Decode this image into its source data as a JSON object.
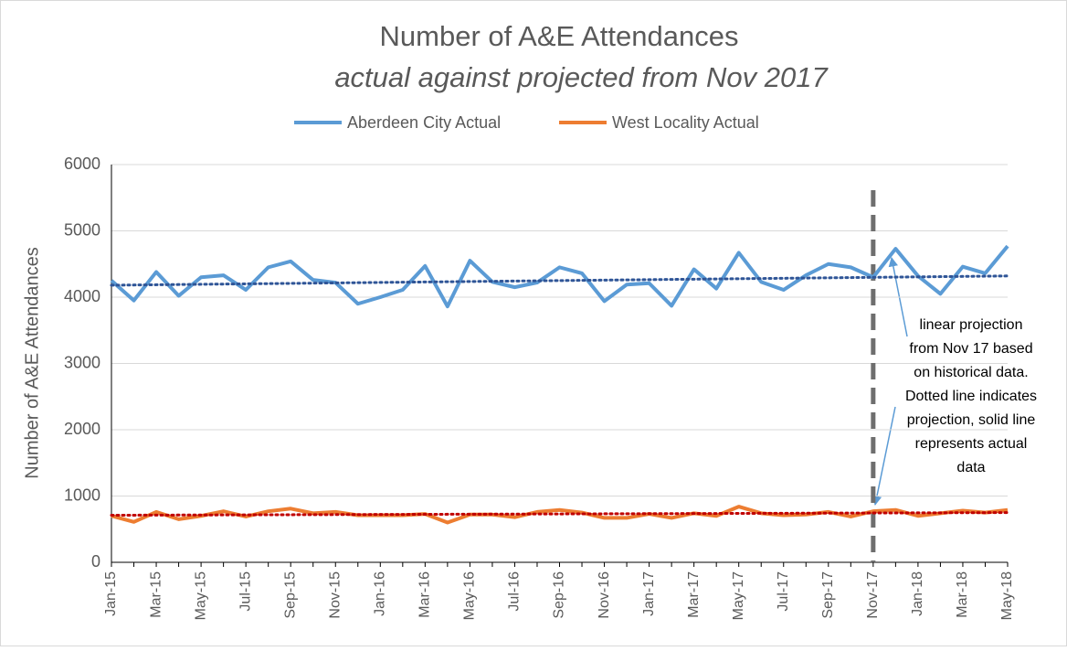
{
  "chart_data": {
    "type": "line",
    "title": "Number of A&E Attendances",
    "subtitle": "actual against projected from Nov 2017",
    "y_label": "Number of A&E Attendances",
    "categories": [
      "Jan-15",
      null,
      "Mar-15",
      null,
      "May-15",
      null,
      "Jul-15",
      null,
      "Sep-15",
      null,
      "Nov-15",
      null,
      "Jan-16",
      null,
      "Mar-16",
      null,
      "May-16",
      null,
      "Jul-16",
      null,
      "Sep-16",
      null,
      "Nov-16",
      null,
      "Jan-17",
      null,
      "Mar-17",
      null,
      "May-17",
      null,
      "Jul-17",
      null,
      "Sep-17",
      null,
      "Nov-17",
      null,
      "Jan-18",
      null,
      "Mar-18",
      null,
      "May-18"
    ],
    "series": [
      {
        "name": "Aberdeen City Actual",
        "color": "#5b9bd5",
        "values": [
          4250,
          3950,
          4380,
          4020,
          4300,
          4330,
          4110,
          4450,
          4540,
          4260,
          4220,
          3900,
          4000,
          4110,
          4470,
          3860,
          4550,
          4230,
          4150,
          4220,
          4450,
          4360,
          3940,
          4190,
          4210,
          3870,
          4420,
          4130,
          4670,
          4230,
          4110,
          4330,
          4500,
          4450,
          4300,
          4730,
          4320,
          4050,
          4460,
          4360,
          4770
        ]
      },
      {
        "name": "West Locality Actual",
        "color": "#ed7d31",
        "values": [
          700,
          610,
          760,
          650,
          700,
          770,
          690,
          770,
          810,
          740,
          760,
          710,
          710,
          710,
          730,
          600,
          720,
          720,
          680,
          760,
          790,
          750,
          670,
          670,
          730,
          670,
          740,
          700,
          840,
          740,
          710,
          720,
          760,
          690,
          770,
          790,
          700,
          740,
          780,
          750,
          790
        ]
      }
    ],
    "trendlines": [
      {
        "color": "#2f5597",
        "start": 4180,
        "end": 4320
      },
      {
        "color": "#c00000",
        "start": 710,
        "end": 750
      }
    ],
    "projection_start": "Nov-17",
    "annotation": [
      "linear projection",
      "from Nov 17 based",
      "on historical data.",
      "Dotted line indicates",
      "projection, solid line",
      "represents actual",
      "data"
    ],
    "ylim": [
      0,
      6000
    ],
    "yticks": [
      0,
      1000,
      2000,
      3000,
      4000,
      5000,
      6000
    ],
    "grid": true,
    "legend": "top"
  }
}
